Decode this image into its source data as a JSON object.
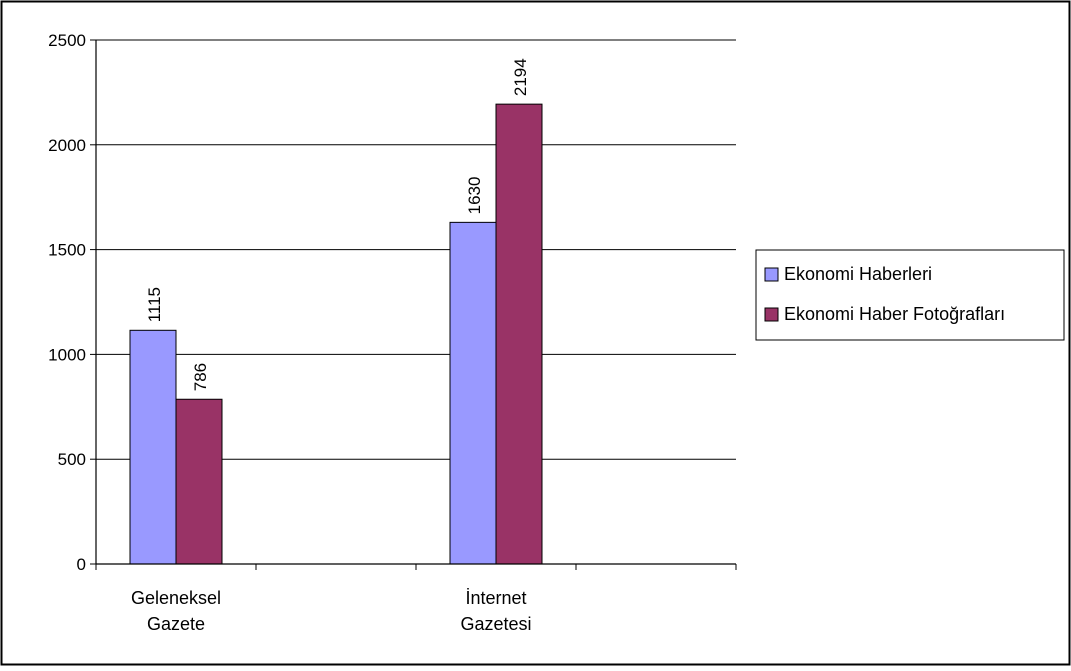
{
  "chart_data": {
    "type": "bar",
    "categories": [
      "Geleneksel\nGazete",
      "İnternet\nGazetesi"
    ],
    "series": [
      {
        "name": "Ekonomi Haberleri",
        "values": [
          1115,
          1630
        ],
        "color": "#9999ff"
      },
      {
        "name": "Ekonomi Haber Fotoğrafları",
        "values": [
          786,
          2194
        ],
        "color": "#993366"
      }
    ],
    "ylim": [
      0,
      2500
    ],
    "yticks": [
      0,
      500,
      1000,
      1500,
      2000,
      2500
    ],
    "grid": true,
    "data_labels": true,
    "legend_position": "right",
    "plot_background": "#ffffff",
    "gridline_color": "#000000"
  }
}
